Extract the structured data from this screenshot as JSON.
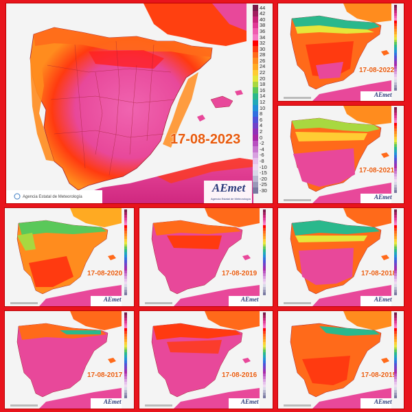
{
  "legend": {
    "labels": [
      "44",
      "42",
      "40",
      "38",
      "36",
      "34",
      "32",
      "30",
      "28",
      "26",
      "24",
      "22",
      "20",
      "18",
      "16",
      "14",
      "12",
      "10",
      "8",
      "6",
      "4",
      "2",
      "0",
      "-2",
      "-4",
      "-6",
      "-8",
      "-10",
      "-15",
      "-20",
      "-25",
      "-30"
    ],
    "colors": [
      "#7a1a4a",
      "#a01e5e",
      "#c8247a",
      "#e03a96",
      "#ef5db0",
      "#f77ac4",
      "#ff0000",
      "#ff3a10",
      "#ff6a1a",
      "#ff8c1e",
      "#ffaa22",
      "#ffcc33",
      "#e6e63a",
      "#a8d840",
      "#5ac85a",
      "#2ab88c",
      "#20a8b8",
      "#2090d8",
      "#3070e0",
      "#5050d8",
      "#7040c8",
      "#9030b8",
      "#a828a8",
      "#b850c0",
      "#c878d0",
      "#d8a0e0",
      "#e6c0ec",
      "#eed8f2",
      "#d8d8e8",
      "#b8b8d0",
      "#9898b8",
      "#7878a0"
    ]
  },
  "main": {
    "date": "17-08-2023",
    "agency": "Agencia Estatal de Meteorología",
    "logo": "AEmet",
    "logo_sub": "Agencia Estatal de Meteorología"
  },
  "panels": [
    {
      "id": "p2022",
      "date": "17-08-2022"
    },
    {
      "id": "p2021",
      "date": "17-08-2021"
    },
    {
      "id": "p2020",
      "date": "17-08-2020"
    },
    {
      "id": "p2019",
      "date": "17-08-2019"
    },
    {
      "id": "p2018",
      "date": "17-08-2018"
    },
    {
      "id": "p2017",
      "date": "17-08-2017"
    },
    {
      "id": "p2016",
      "date": "17-08-2016"
    },
    {
      "id": "p2015",
      "date": "17-08-2015"
    }
  ],
  "small_logo": "AEmet"
}
